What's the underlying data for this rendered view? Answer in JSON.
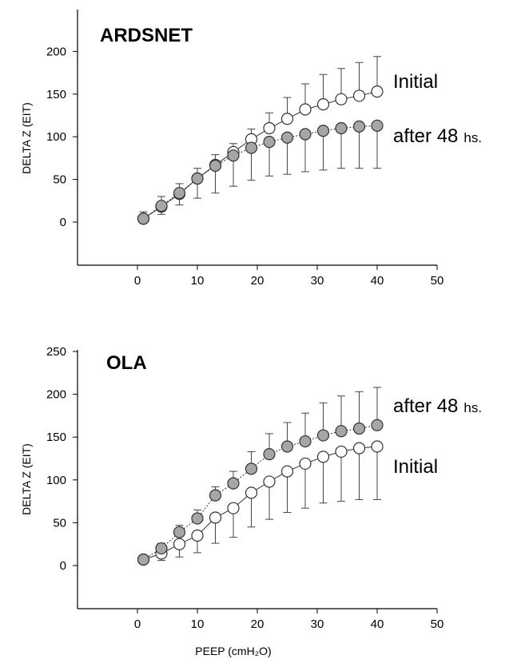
{
  "chart_data": [
    {
      "type": "line",
      "title": "ARDSNET",
      "xlabel": "",
      "ylabel": "DELTA Z (EIT)",
      "xlim": [
        -10,
        50
      ],
      "ylim": [
        -50,
        250
      ],
      "xticks": [
        0,
        10,
        20,
        30,
        40,
        50
      ],
      "yticks": [
        0,
        50,
        100,
        150,
        200
      ],
      "grid": false,
      "x": [
        1,
        4,
        7,
        10,
        13,
        16,
        19,
        22,
        25,
        28,
        31,
        34,
        37,
        40
      ],
      "series": [
        {
          "name": "Initial",
          "label_main": "Initial",
          "label_sub": "",
          "marker": "open",
          "values": [
            4,
            18,
            33,
            51,
            67,
            82,
            97,
            110,
            121,
            132,
            138,
            144,
            148,
            153
          ],
          "error_upper": [
            8,
            12,
            12,
            12,
            12,
            10,
            12,
            18,
            25,
            30,
            35,
            36,
            39,
            41
          ]
        },
        {
          "name": "after 48 hs.",
          "label_main": "after 48",
          "label_sub": "hs.",
          "marker": "filled",
          "values": [
            4,
            19,
            34,
            51,
            66,
            78,
            87,
            94,
            99,
            103,
            107,
            110,
            112,
            113
          ],
          "error_lower": [
            4,
            10,
            14,
            23,
            32,
            36,
            38,
            40,
            43,
            44,
            46,
            47,
            49,
            50
          ]
        }
      ]
    },
    {
      "type": "line",
      "title": "OLA",
      "xlabel": "PEEP (cmH₂O)",
      "ylabel": "DELTA Z (EIT)",
      "xlim": [
        -10,
        50
      ],
      "ylim": [
        -50,
        250
      ],
      "xticks": [
        0,
        10,
        20,
        30,
        40,
        50
      ],
      "yticks": [
        0,
        50,
        100,
        150,
        200,
        250
      ],
      "grid": false,
      "x": [
        1,
        4,
        7,
        10,
        13,
        16,
        19,
        22,
        25,
        28,
        31,
        34,
        37,
        40
      ],
      "series": [
        {
          "name": "Initial",
          "label_main": "Initial",
          "label_sub": "",
          "marker": "open",
          "values": [
            7,
            14,
            25,
            35,
            56,
            67,
            85,
            98,
            110,
            119,
            127,
            133,
            137,
            139
          ],
          "error_lower": [
            5,
            8,
            15,
            20,
            30,
            34,
            40,
            44,
            48,
            52,
            54,
            58,
            60,
            62
          ]
        },
        {
          "name": "after 48 hs.",
          "label_main": "after 48",
          "label_sub": "hs.",
          "marker": "filled",
          "values": [
            7,
            20,
            39,
            55,
            82,
            96,
            113,
            130,
            139,
            145,
            152,
            157,
            160,
            164
          ],
          "error_upper": [
            4,
            6,
            8,
            10,
            10,
            14,
            20,
            24,
            28,
            33,
            38,
            41,
            43,
            44
          ]
        }
      ]
    }
  ]
}
